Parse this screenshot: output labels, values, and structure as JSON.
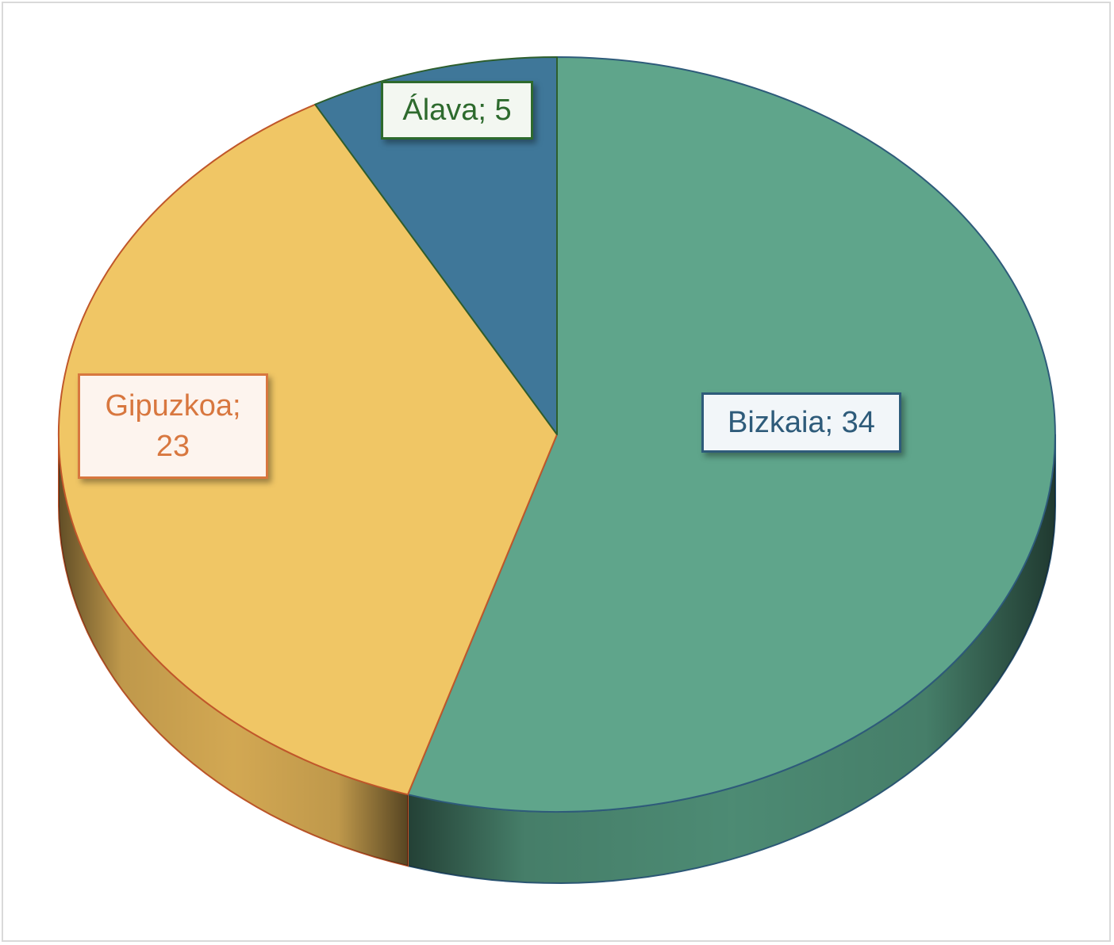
{
  "chart_data": {
    "type": "pie",
    "style": "3d",
    "title": "",
    "slices": [
      {
        "label": "Bizkaia",
        "value": 34,
        "color": "#5fa58b",
        "side_color": "#4f8f77",
        "edge": "#2e5b7a",
        "text_color": "#2e5b7a"
      },
      {
        "label": "Gipuzkoa",
        "value": 23,
        "color": "#f0c665",
        "side_color": "#d9ad55",
        "edge": "#c0572a",
        "text_color": "#d8773f"
      },
      {
        "label": "Álava",
        "value": 5,
        "color": "#3f7799",
        "side_color": "#346582",
        "edge": "#2d5e2d",
        "text_color": "#2d6a2d"
      }
    ],
    "labels": {
      "bizkaia": {
        "line1": "Bizkaia; 34",
        "line2": ""
      },
      "gipuzkoa": {
        "line1": "Gipuzkoa;",
        "line2": "23"
      },
      "alava": {
        "line1": "Álava; 5",
        "line2": ""
      }
    },
    "legend": "none"
  }
}
